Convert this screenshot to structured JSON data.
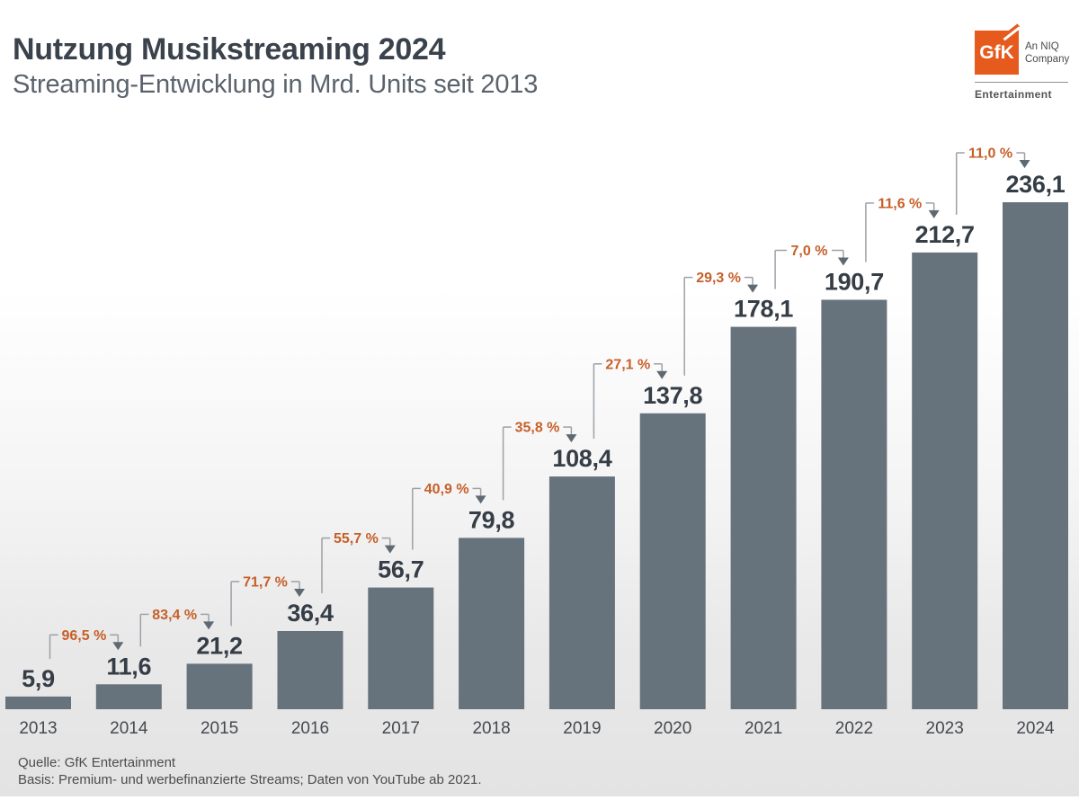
{
  "header": {
    "title": "Nutzung Musikstreaming 2024",
    "subtitle": "Streaming-Entwicklung in Mrd. Units seit 2013"
  },
  "logo": {
    "brand": "GfK",
    "tagline_line1": "An NIQ",
    "tagline_line2": "Company",
    "division": "Entertainment",
    "brand_color": "#e65a1e"
  },
  "chart_data": {
    "type": "bar",
    "title": "Nutzung Musikstreaming 2024",
    "subtitle": "Streaming-Entwicklung in Mrd. Units seit 2013",
    "unit": "Mrd. Units",
    "categories": [
      "2013",
      "2014",
      "2015",
      "2016",
      "2017",
      "2018",
      "2019",
      "2020",
      "2021",
      "2022",
      "2023",
      "2024"
    ],
    "values": [
      5.9,
      11.6,
      21.2,
      36.4,
      56.7,
      79.8,
      108.4,
      137.8,
      178.1,
      190.7,
      212.7,
      236.1
    ],
    "growth_percent": [
      96.5,
      83.4,
      71.7,
      55.7,
      40.9,
      35.8,
      27.1,
      29.3,
      7.0,
      11.6,
      11.0
    ],
    "ylim": [
      0,
      240
    ],
    "grid": false,
    "legend": false,
    "bar_color": "#66727c",
    "value_label_color": "#353d46",
    "axis_label_color": "#45494e",
    "growth_label_color": "#c75f28",
    "connector_color": "#9ca1a6",
    "arrow_color": "#5f6972"
  },
  "footer": {
    "source_line1": "Quelle: GfK Entertainment",
    "source_line2": "Basis: Premium- und werbefinanzierte Streams; Daten von YouTube ab 2021."
  }
}
